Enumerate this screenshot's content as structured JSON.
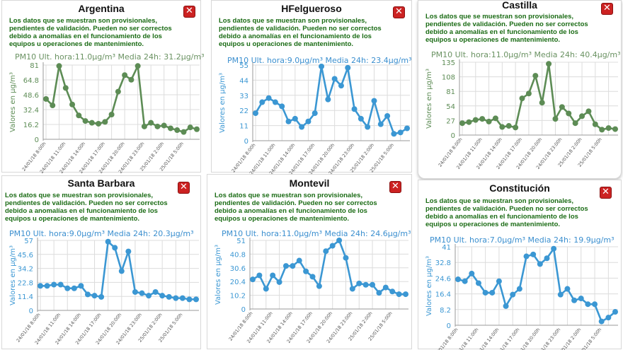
{
  "notice_lines": [
    "Los datos que se muestran son provisionales,",
    "pendientes de validación. Pueden no ser correctos",
    "debido a anomalías en el funcionamiento de los",
    "equipos u operaciones de mantenimiento."
  ],
  "close_symbol": "✕",
  "x_tick_labels": [
    "24/01/18 8:00h",
    "24/01/18 11:00h",
    "24/01/18 14:00h",
    "24/01/18 17:00h",
    "24/01/18 20:00h",
    "24/01/18 23:00h",
    "25/01/18 2:00h",
    "25/01/18 5:00h"
  ],
  "colors": {
    "green": "#5d8c55",
    "blue": "#3b97d3",
    "notice": "#1a6b14",
    "grid": "#dcdcdc"
  },
  "panels": [
    {
      "title": "Argentina",
      "header": "PM10 Ult. hora:11.0µg/m³ Media 24h: 31.2µg/m³",
      "ylabel": "Valores en µg/m³"
    },
    {
      "title": "HFelgueroso",
      "header": "PM10 Ult. hora:9.0µg/m³ Media 24h: 23.4µg/m³",
      "ylabel": "Valores en µg/m³"
    },
    {
      "title": "Castilla",
      "header": "PM10 Ult. hora:11.0µg/m³ Media 24h: 40.4µg/m³",
      "ylabel": "Valores en µg/m³"
    },
    {
      "title": "Santa Barbara",
      "header": "PM10 Ult. hora:9.0µg/m³ Media 24h: 20.3µg/m³",
      "ylabel": "Valores en µg/m³"
    },
    {
      "title": "Montevil",
      "header": "PM10 Ult. hora:11.0µg/m³ Media 24h: 24.6µg/m³",
      "ylabel": "Valores en µg/m³"
    },
    {
      "title": "Constitución",
      "header": "PM10 Ult. hora:7.0µg/m³ Media 24h: 19.9µg/m³",
      "ylabel": "Valores en µg/m³"
    }
  ],
  "chart_data": [
    {
      "type": "line",
      "station": "Argentina",
      "ylabel": "Valores en µg/m³",
      "ylim": [
        0,
        81
      ],
      "yticks": [
        0,
        16.2,
        32.4,
        48.6,
        64.8,
        81
      ],
      "color": "#5d8c55",
      "series": [
        {
          "values": [
            44,
            37,
            80,
            56,
            38,
            26,
            20,
            18,
            17,
            19,
            27,
            52,
            70,
            65,
            80,
            14,
            18,
            14,
            15,
            12,
            10,
            8,
            13,
            11
          ]
        }
      ]
    },
    {
      "type": "line",
      "station": "HFelgueroso",
      "ylabel": "Valores en µg/m³",
      "ylim": [
        0,
        55
      ],
      "yticks": [
        0,
        11,
        22,
        33,
        44,
        55
      ],
      "color": "#3b97d3",
      "series": [
        {
          "values": [
            20,
            28,
            31,
            28,
            25,
            14,
            16,
            10,
            14,
            20,
            54,
            30,
            45,
            40,
            53,
            23,
            16,
            10,
            29,
            12,
            18,
            5,
            6,
            9
          ]
        }
      ]
    },
    {
      "type": "line",
      "station": "Castilla",
      "ylabel": "Valores en µg/m³",
      "ylim": [
        0,
        135
      ],
      "yticks": [
        0,
        27,
        54,
        81,
        108,
        135
      ],
      "color": "#5d8c55",
      "series": [
        {
          "values": [
            22,
            24,
            28,
            30,
            25,
            31,
            15,
            17,
            14,
            68,
            77,
            110,
            60,
            132,
            30,
            52,
            40,
            22,
            35,
            44,
            20,
            10,
            13,
            11
          ]
        }
      ]
    },
    {
      "type": "line",
      "station": "Santa Barbara",
      "ylabel": "Valores en µg/m³",
      "ylim": [
        0,
        57
      ],
      "yticks": [
        0,
        11.4,
        22.8,
        34.2,
        45.6,
        57
      ],
      "color": "#3b97d3",
      "series": [
        {
          "values": [
            20,
            20,
            21,
            21,
            18,
            18,
            20,
            13,
            12,
            11,
            56,
            51,
            32,
            48,
            15,
            14,
            12,
            15,
            12,
            11,
            10,
            10,
            9,
            9
          ]
        }
      ]
    },
    {
      "type": "line",
      "station": "Montevil",
      "ylabel": "Valores en µg/m³",
      "ylim": [
        0,
        51
      ],
      "yticks": [
        0,
        10.2,
        20.4,
        30.6,
        40.8,
        51
      ],
      "color": "#3b97d3",
      "series": [
        {
          "values": [
            22,
            25,
            15,
            25,
            20,
            32,
            32,
            36,
            28,
            24,
            17,
            43,
            47,
            51,
            38,
            15,
            19,
            18,
            18,
            12,
            16,
            13,
            11,
            11
          ]
        }
      ]
    },
    {
      "type": "line",
      "station": "Constitución",
      "ylabel": "Valores en µg/m³",
      "ylim": [
        0,
        41
      ],
      "yticks": [
        0,
        8.2,
        16.4,
        24.6,
        32.8,
        41
      ],
      "color": "#3b97d3",
      "series": [
        {
          "values": [
            24,
            23,
            27,
            22,
            17,
            17,
            23,
            10,
            16,
            19,
            36,
            37,
            32,
            35,
            40,
            16,
            19,
            13,
            14,
            11,
            11,
            2,
            4,
            7
          ]
        }
      ]
    }
  ]
}
